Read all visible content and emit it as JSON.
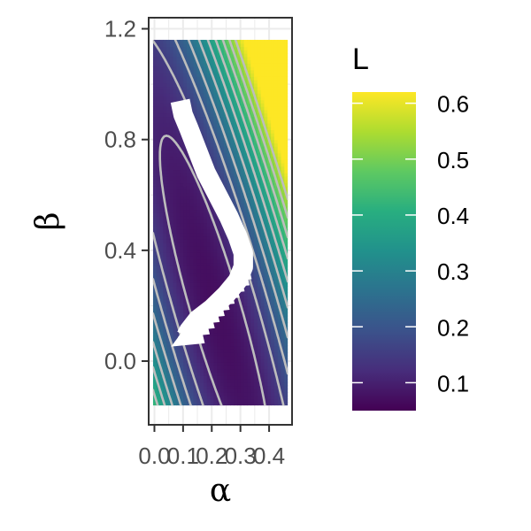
{
  "chart_data": {
    "type": "heatmap",
    "title": "",
    "xlabel": "α",
    "ylabel": "β",
    "xlim": [
      -0.02,
      0.48
    ],
    "ylim": [
      -0.23,
      1.24
    ],
    "x_ticks": [
      0.0,
      0.1,
      0.2,
      0.3,
      0.4
    ],
    "x_tick_labels": [
      "0.0",
      "0.1",
      "0.2",
      "0.3",
      "0.4"
    ],
    "y_ticks": [
      0.0,
      0.4,
      0.8,
      1.2
    ],
    "y_tick_labels": [
      "0.0",
      "0.4",
      "0.8",
      "1.2"
    ],
    "fill_extent": {
      "x": [
        -0.005,
        0.465
      ],
      "y": [
        -0.16,
        1.16
      ]
    },
    "grid": true,
    "colormap": "viridis",
    "fill_variable": "L",
    "legend": {
      "title": "L",
      "placement": "right",
      "range": [
        0.05,
        0.62
      ],
      "ticks": [
        0.1,
        0.2,
        0.3,
        0.4,
        0.5,
        0.6
      ],
      "tick_labels": [
        "0.1",
        "0.2",
        "0.3",
        "0.4",
        "0.5",
        "0.6"
      ]
    },
    "contours": {
      "color": "#bdbdbd",
      "levels": [
        0.07,
        0.1,
        0.15,
        0.2,
        0.25,
        0.3,
        0.35,
        0.4,
        0.45,
        0.5,
        0.55
      ]
    },
    "descent_path": {
      "color": "#ffffff",
      "points": [
        [
          0.09,
          0.94
        ],
        [
          0.1,
          0.89
        ],
        [
          0.12,
          0.84
        ],
        [
          0.15,
          0.76
        ],
        [
          0.18,
          0.68
        ],
        [
          0.22,
          0.6
        ],
        [
          0.26,
          0.52
        ],
        [
          0.29,
          0.45
        ],
        [
          0.31,
          0.39
        ],
        [
          0.31,
          0.34
        ],
        [
          0.29,
          0.29
        ],
        [
          0.25,
          0.24
        ],
        [
          0.2,
          0.19
        ],
        [
          0.15,
          0.15
        ],
        [
          0.12,
          0.11
        ],
        [
          0.11,
          0.09
        ]
      ],
      "arrows": [
        [
          0.31,
          0.32
        ],
        [
          0.3,
          0.3
        ],
        [
          0.28,
          0.28
        ],
        [
          0.26,
          0.26
        ],
        [
          0.24,
          0.24
        ],
        [
          0.22,
          0.22
        ],
        [
          0.2,
          0.2
        ],
        [
          0.18,
          0.18
        ],
        [
          0.16,
          0.16
        ],
        [
          0.14,
          0.14
        ],
        [
          0.12,
          0.11
        ]
      ]
    }
  }
}
